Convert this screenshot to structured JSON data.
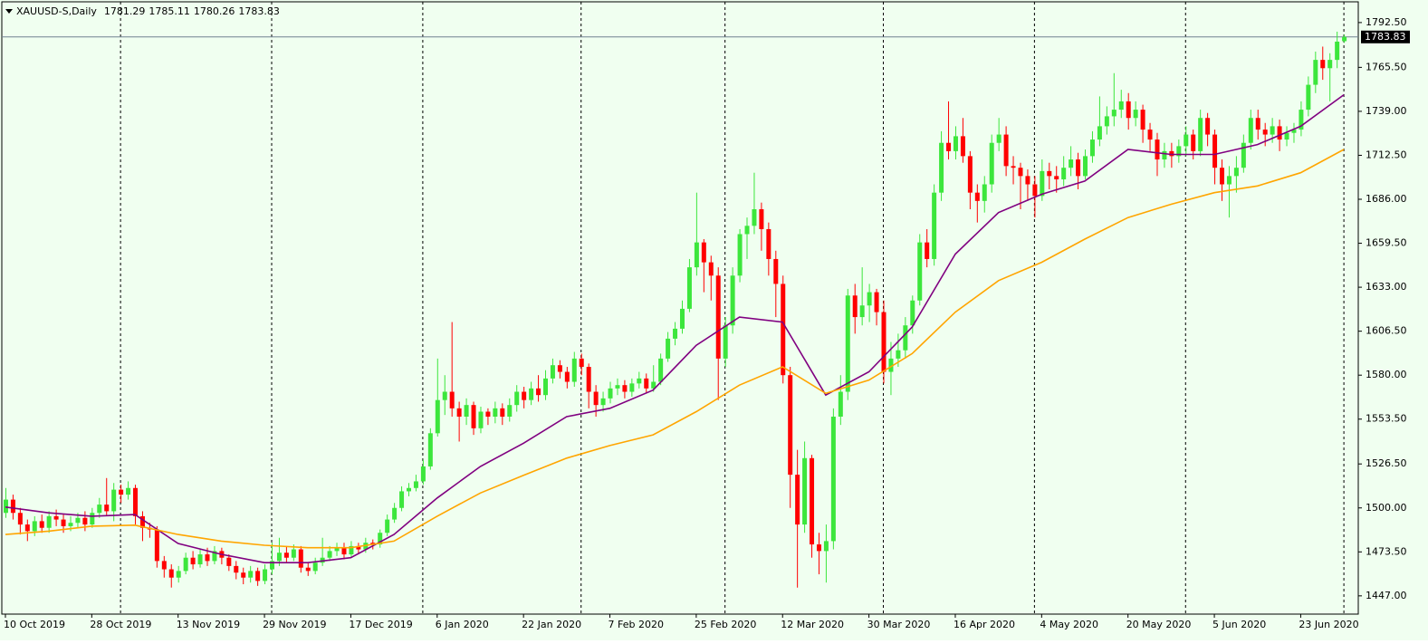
{
  "chart_data": {
    "type": "candlestick",
    "title": "XAUUSD-S,Daily",
    "ohlc": [
      1781.29,
      1785.11,
      1780.26,
      1783.83
    ],
    "current_price": {
      "value": 1783.83,
      "label": "1783.83"
    },
    "up_color": "#3ce63c",
    "down_color": "#ff0000",
    "background": "#f0fff0",
    "open": [
      1497,
      1505,
      1497,
      1490,
      1486,
      1492,
      1488,
      1495,
      1493,
      1489,
      1491,
      1494,
      1490,
      1497,
      1502,
      1498,
      1511,
      1508,
      1512,
      1495,
      1488,
      1487,
      1468,
      1463,
      1458,
      1462,
      1470,
      1466,
      1472,
      1468,
      1474,
      1470,
      1465,
      1461,
      1458,
      1462,
      1456,
      1463,
      1468,
      1473,
      1470,
      1475,
      1464,
      1462,
      1467,
      1470,
      1474,
      1476,
      1472,
      1477,
      1475,
      1479,
      1478,
      1485,
      1493,
      1500,
      1510,
      1512,
      1516,
      1525,
      1545,
      1565,
      1570,
      1560,
      1555,
      1562,
      1548,
      1558,
      1555,
      1560,
      1555,
      1562,
      1570,
      1565,
      1572,
      1568,
      1578,
      1586,
      1582,
      1576,
      1590,
      1585,
      1570,
      1562,
      1566,
      1572,
      1574,
      1570,
      1575,
      1578,
      1572,
      1576,
      1590,
      1602,
      1608,
      1620,
      1645,
      1660,
      1648,
      1640,
      1590,
      1610,
      1640,
      1665,
      1670,
      1680,
      1668,
      1650,
      1635,
      1580,
      1520,
      1490,
      1530,
      1478,
      1474,
      1480,
      1555,
      1570,
      1628,
      1615,
      1622,
      1630,
      1618,
      1582,
      1590,
      1595,
      1610,
      1625,
      1660,
      1650,
      1690,
      1720,
      1715,
      1724,
      1712,
      1690,
      1685,
      1695,
      1720,
      1725,
      1706,
      1705,
      1700,
      1695,
      1688,
      1703,
      1700,
      1698,
      1705,
      1710,
      1700,
      1712,
      1722,
      1730,
      1736,
      1740,
      1745,
      1735,
      1740,
      1728,
      1722,
      1710,
      1715,
      1712,
      1718,
      1725,
      1715,
      1735,
      1725,
      1705,
      1695,
      1700,
      1705,
      1720,
      1735,
      1728,
      1725,
      1730,
      1722,
      1726,
      1728,
      1740,
      1755,
      1770,
      1765,
      1770,
      1781.29
    ],
    "high": [
      1512,
      1508,
      1500,
      1493,
      1495,
      1496,
      1498,
      1499,
      1496,
      1495,
      1497,
      1498,
      1500,
      1506,
      1518,
      1515,
      1514,
      1516,
      1514,
      1498,
      1491,
      1489,
      1471,
      1466,
      1465,
      1473,
      1474,
      1475,
      1476,
      1477,
      1476,
      1472,
      1468,
      1464,
      1465,
      1464,
      1466,
      1479,
      1482,
      1477,
      1478,
      1477,
      1467,
      1470,
      1482,
      1477,
      1479,
      1479,
      1480,
      1479,
      1482,
      1481,
      1487,
      1496,
      1503,
      1513,
      1515,
      1520,
      1529,
      1548,
      1590,
      1580,
      1612,
      1564,
      1566,
      1564,
      1561,
      1560,
      1564,
      1563,
      1566,
      1574,
      1573,
      1576,
      1580,
      1583,
      1590,
      1589,
      1585,
      1594,
      1593,
      1587,
      1574,
      1570,
      1576,
      1578,
      1577,
      1578,
      1582,
      1581,
      1586,
      1593,
      1606,
      1612,
      1625,
      1650,
      1690,
      1662,
      1652,
      1645,
      1615,
      1645,
      1668,
      1675,
      1702,
      1684,
      1672,
      1655,
      1640,
      1585,
      1535,
      1540,
      1532,
      1485,
      1490,
      1560,
      1580,
      1632,
      1635,
      1645,
      1635,
      1632,
      1625,
      1600,
      1605,
      1615,
      1628,
      1665,
      1668,
      1695,
      1727,
      1745,
      1730,
      1735,
      1715,
      1695,
      1700,
      1725,
      1735,
      1730,
      1712,
      1708,
      1704,
      1700,
      1710,
      1708,
      1706,
      1712,
      1718,
      1714,
      1716,
      1727,
      1748,
      1742,
      1762,
      1752,
      1750,
      1745,
      1743,
      1732,
      1726,
      1720,
      1720,
      1722,
      1730,
      1728,
      1740,
      1738,
      1728,
      1710,
      1706,
      1712,
      1725,
      1740,
      1740,
      1732,
      1735,
      1734,
      1730,
      1732,
      1745,
      1760,
      1775,
      1778,
      1774,
      1787,
      1785.11
    ],
    "low": [
      1494,
      1493,
      1484,
      1480,
      1483,
      1485,
      1485,
      1489,
      1485,
      1486,
      1488,
      1486,
      1488,
      1494,
      1495,
      1492,
      1503,
      1505,
      1490,
      1480,
      1482,
      1464,
      1458,
      1452,
      1455,
      1460,
      1463,
      1464,
      1465,
      1466,
      1466,
      1462,
      1457,
      1454,
      1455,
      1453,
      1454,
      1460,
      1465,
      1467,
      1468,
      1461,
      1459,
      1460,
      1465,
      1468,
      1471,
      1469,
      1470,
      1472,
      1473,
      1475,
      1476,
      1483,
      1491,
      1498,
      1507,
      1510,
      1514,
      1523,
      1543,
      1556,
      1555,
      1540,
      1550,
      1544,
      1545,
      1550,
      1551,
      1550,
      1552,
      1558,
      1560,
      1562,
      1564,
      1565,
      1575,
      1578,
      1572,
      1573,
      1580,
      1560,
      1555,
      1558,
      1563,
      1568,
      1566,
      1567,
      1572,
      1569,
      1570,
      1574,
      1588,
      1598,
      1605,
      1618,
      1640,
      1630,
      1625,
      1565,
      1585,
      1605,
      1636,
      1650,
      1665,
      1655,
      1640,
      1615,
      1575,
      1500,
      1452,
      1485,
      1470,
      1460,
      1455,
      1475,
      1550,
      1565,
      1605,
      1610,
      1612,
      1610,
      1575,
      1568,
      1585,
      1590,
      1605,
      1622,
      1645,
      1646,
      1685,
      1710,
      1710,
      1708,
      1680,
      1672,
      1678,
      1690,
      1715,
      1700,
      1695,
      1680,
      1685,
      1675,
      1685,
      1692,
      1690,
      1694,
      1700,
      1692,
      1698,
      1708,
      1718,
      1725,
      1730,
      1735,
      1728,
      1730,
      1720,
      1715,
      1700,
      1705,
      1705,
      1708,
      1712,
      1710,
      1712,
      1718,
      1695,
      1685,
      1675,
      1690,
      1702,
      1716,
      1722,
      1718,
      1720,
      1715,
      1718,
      1720,
      1724,
      1736,
      1750,
      1758,
      1745,
      1765,
      1780.26
    ],
    "close": [
      1505,
      1497,
      1490,
      1486,
      1492,
      1488,
      1495,
      1493,
      1489,
      1491,
      1494,
      1490,
      1497,
      1502,
      1498,
      1511,
      1508,
      1512,
      1495,
      1488,
      1487,
      1468,
      1463,
      1458,
      1462,
      1470,
      1466,
      1472,
      1468,
      1474,
      1470,
      1465,
      1461,
      1458,
      1462,
      1456,
      1463,
      1468,
      1473,
      1470,
      1475,
      1464,
      1462,
      1467,
      1470,
      1474,
      1476,
      1472,
      1477,
      1475,
      1479,
      1478,
      1485,
      1493,
      1500,
      1510,
      1512,
      1516,
      1525,
      1545,
      1565,
      1570,
      1560,
      1555,
      1562,
      1548,
      1558,
      1555,
      1560,
      1555,
      1562,
      1570,
      1565,
      1572,
      1568,
      1578,
      1586,
      1582,
      1576,
      1590,
      1585,
      1570,
      1562,
      1566,
      1572,
      1574,
      1570,
      1575,
      1578,
      1572,
      1576,
      1590,
      1602,
      1608,
      1620,
      1645,
      1660,
      1648,
      1640,
      1590,
      1610,
      1640,
      1665,
      1670,
      1680,
      1668,
      1650,
      1635,
      1580,
      1520,
      1490,
      1530,
      1478,
      1474,
      1480,
      1555,
      1570,
      1628,
      1615,
      1622,
      1630,
      1618,
      1582,
      1590,
      1595,
      1610,
      1625,
      1660,
      1650,
      1690,
      1720,
      1715,
      1724,
      1712,
      1690,
      1685,
      1695,
      1720,
      1725,
      1706,
      1705,
      1700,
      1695,
      1688,
      1703,
      1700,
      1698,
      1705,
      1710,
      1700,
      1712,
      1722,
      1730,
      1736,
      1740,
      1745,
      1735,
      1740,
      1728,
      1722,
      1710,
      1715,
      1712,
      1718,
      1725,
      1715,
      1735,
      1725,
      1705,
      1695,
      1700,
      1705,
      1720,
      1735,
      1728,
      1725,
      1730,
      1722,
      1726,
      1728,
      1740,
      1755,
      1770,
      1765,
      1770,
      1781,
      1783.83
    ],
    "series": [
      {
        "color": "#800080",
        "x": [
          0,
          6,
          12,
          18,
          24,
          30,
          36,
          42,
          48,
          54,
          60,
          66,
          72,
          78,
          84,
          90,
          96,
          102,
          108,
          114,
          120,
          126,
          132,
          138,
          144,
          150,
          156,
          162,
          168,
          174,
          180,
          186
        ],
        "values": [
          1500.5,
          1497,
          1495,
          1496,
          1478.6,
          1472,
          1467,
          1467,
          1470,
          1484,
          1506,
          1525,
          1539,
          1555,
          1560,
          1571,
          1598,
          1615,
          1612,
          1568,
          1582,
          1609,
          1653,
          1678,
          1689,
          1697,
          1716,
          1713,
          1713,
          1719,
          1730,
          1749
        ]
      },
      {
        "color": "#ffa500",
        "x": [
          0,
          6,
          12,
          18,
          24,
          30,
          36,
          42,
          48,
          54,
          60,
          66,
          72,
          78,
          84,
          90,
          96,
          102,
          108,
          114,
          120,
          126,
          132,
          138,
          144,
          150,
          156,
          162,
          168,
          174,
          180,
          186
        ],
        "values": [
          1484,
          1486,
          1489,
          1489.6,
          1484,
          1480,
          1477.5,
          1476,
          1476,
          1480,
          1495,
          1509,
          1519.6,
          1530,
          1537.6,
          1544,
          1558,
          1574,
          1585,
          1569,
          1577,
          1593,
          1618,
          1637,
          1648,
          1662,
          1675,
          1683,
          1690,
          1694,
          1702,
          1716
        ]
      }
    ],
    "separators": [
      16,
      37,
      58,
      80,
      100,
      122,
      143,
      164,
      186
    ],
    "xlim": [
      -0.5,
      188
    ],
    "xticks": [
      {
        "value": 0,
        "label": "10 Oct 2019"
      },
      {
        "value": 12,
        "label": "28 Oct 2019"
      },
      {
        "value": 24,
        "label": "13 Nov 2019"
      },
      {
        "value": 36,
        "label": "29 Nov 2019"
      },
      {
        "value": 48,
        "label": "17 Dec 2019"
      },
      {
        "value": 60,
        "label": "6 Jan 2020"
      },
      {
        "value": 72,
        "label": "22 Jan 2020"
      },
      {
        "value": 84,
        "label": "7 Feb 2020"
      },
      {
        "value": 96,
        "label": "25 Feb 2020"
      },
      {
        "value": 108,
        "label": "12 Mar 2020"
      },
      {
        "value": 120,
        "label": "30 Mar 2020"
      },
      {
        "value": 132,
        "label": "16 Apr 2020"
      },
      {
        "value": 144,
        "label": "4 May 2020"
      },
      {
        "value": 156,
        "label": "20 May 2020"
      },
      {
        "value": 168,
        "label": "5 Jun 2020"
      },
      {
        "value": 180,
        "label": "23 Jun 2020"
      }
    ],
    "ylim": [
      1436,
      1805
    ],
    "yticks": [
      {
        "value": 1792.5,
        "label": "1792.50"
      },
      {
        "value": 1765.5,
        "label": "1765.50"
      },
      {
        "value": 1739,
        "label": "1739.00"
      },
      {
        "value": 1712.5,
        "label": "1712.50"
      },
      {
        "value": 1686,
        "label": "1686.00"
      },
      {
        "value": 1659.5,
        "label": "1659.50"
      },
      {
        "value": 1633,
        "label": "1633.00"
      },
      {
        "value": 1606.5,
        "label": "1606.50"
      },
      {
        "value": 1580,
        "label": "1580.00"
      },
      {
        "value": 1553.5,
        "label": "1553.50"
      },
      {
        "value": 1526.5,
        "label": "1526.50"
      },
      {
        "value": 1500,
        "label": "1500.00"
      },
      {
        "value": 1473.5,
        "label": "1473.50"
      },
      {
        "value": 1447,
        "label": "1447.00"
      }
    ]
  }
}
